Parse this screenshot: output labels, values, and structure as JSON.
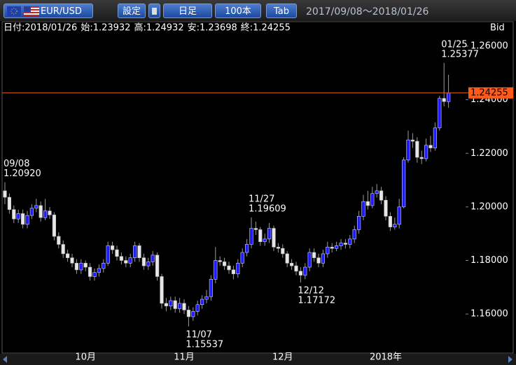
{
  "toolbar": {
    "pair": "EUR/USD",
    "settings": "設定",
    "period": "日足",
    "count": "100本",
    "tab": "Tab",
    "range": "2017/09/08～2018/01/26"
  },
  "info": [
    "日付:2018/01/26",
    "始:1.23932",
    "高:1.24932",
    "安:1.23698",
    "終:1.24255"
  ],
  "price_type": "Bid",
  "chart_data": {
    "type": "candlestick",
    "categories": [
      null,
      null,
      null,
      null,
      null,
      null,
      null,
      null,
      null,
      null,
      null,
      null,
      null,
      null,
      null,
      null,
      null,
      null,
      "10月",
      null,
      null,
      null,
      null,
      null,
      null,
      null,
      null,
      null,
      null,
      null,
      null,
      null,
      null,
      null,
      null,
      null,
      null,
      null,
      null,
      null,
      "11月",
      null,
      null,
      null,
      null,
      null,
      null,
      null,
      null,
      null,
      null,
      null,
      null,
      null,
      null,
      null,
      null,
      null,
      null,
      null,
      null,
      null,
      "12月",
      null,
      null,
      null,
      null,
      null,
      null,
      null,
      null,
      null,
      null,
      null,
      null,
      null,
      null,
      null,
      null,
      null,
      null,
      null,
      null,
      null,
      null,
      "2018年",
      null,
      null,
      null,
      null,
      null,
      null,
      null,
      null,
      null,
      null,
      null,
      null,
      null,
      null
    ],
    "open": [
      1.206,
      1.2036,
      1.199,
      1.1955,
      1.1975,
      1.1935,
      1.1968,
      1.1995,
      1.2005,
      1.196,
      1.1985,
      1.197,
      1.189,
      1.186,
      1.1825,
      1.181,
      1.179,
      1.1765,
      1.179,
      1.1775,
      1.174,
      1.1755,
      1.177,
      1.179,
      1.1855,
      1.184,
      1.1815,
      1.18,
      1.179,
      1.181,
      1.1855,
      1.181,
      1.178,
      1.1795,
      1.182,
      1.174,
      1.164,
      1.163,
      1.165,
      1.162,
      1.164,
      1.1615,
      1.159,
      1.161,
      1.1635,
      1.1655,
      1.1665,
      1.173,
      1.18,
      1.1795,
      1.178,
      1.1765,
      1.175,
      1.179,
      1.183,
      1.186,
      1.192,
      1.1915,
      1.187,
      1.188,
      1.192,
      1.185,
      1.1845,
      1.1825,
      1.179,
      1.178,
      1.176,
      1.1745,
      1.1775,
      1.183,
      1.181,
      1.179,
      1.1825,
      1.185,
      1.1845,
      1.1855,
      1.1865,
      1.186,
      1.188,
      1.1915,
      1.1965,
      1.202,
      1.2005,
      1.205,
      1.206,
      1.2025,
      1.1965,
      1.1925,
      1.1935,
      1.2,
      1.2175,
      1.225,
      1.2245,
      1.2185,
      1.218,
      1.223,
      1.222,
      1.2295,
      1.2405,
      1.23932
    ],
    "high": [
      1.2092,
      1.205,
      1.2005,
      1.199,
      1.199,
      1.1985,
      1.201,
      1.203,
      1.202,
      1.203,
      1.2,
      1.198,
      1.1905,
      1.1875,
      1.184,
      1.1825,
      1.1805,
      1.1805,
      1.18,
      1.179,
      1.177,
      1.1785,
      1.1805,
      1.187,
      1.187,
      1.1855,
      1.183,
      1.1815,
      1.1825,
      1.187,
      1.1865,
      1.1825,
      1.181,
      1.1835,
      1.183,
      1.175,
      1.166,
      1.1665,
      1.1665,
      1.166,
      1.1655,
      1.163,
      1.1625,
      1.165,
      1.167,
      1.169,
      1.1745,
      1.185,
      1.1815,
      1.181,
      1.1795,
      1.178,
      1.1805,
      1.1845,
      1.188,
      1.19609,
      1.1945,
      1.1925,
      1.19,
      1.194,
      1.193,
      1.1865,
      1.186,
      1.1835,
      1.1805,
      1.1795,
      1.1775,
      1.179,
      1.1845,
      1.1845,
      1.1825,
      1.184,
      1.187,
      1.1865,
      1.187,
      1.188,
      1.188,
      1.1895,
      1.193,
      1.1985,
      1.2045,
      1.206,
      1.2075,
      1.2085,
      1.2075,
      1.204,
      1.198,
      1.196,
      1.203,
      1.2185,
      1.2285,
      1.2275,
      1.226,
      1.221,
      1.2255,
      1.2265,
      1.2315,
      1.2415,
      1.25377,
      1.24932
    ],
    "low": [
      1.201,
      1.1975,
      1.194,
      1.194,
      1.192,
      1.192,
      1.1955,
      1.198,
      1.1945,
      1.195,
      1.1955,
      1.1875,
      1.1845,
      1.181,
      1.1795,
      1.1775,
      1.175,
      1.175,
      1.176,
      1.1725,
      1.1725,
      1.174,
      1.1755,
      1.178,
      1.1825,
      1.18,
      1.1785,
      1.1775,
      1.1775,
      1.1795,
      1.1795,
      1.1765,
      1.1765,
      1.178,
      1.1725,
      1.162,
      1.161,
      1.1615,
      1.1605,
      1.1605,
      1.16,
      1.15537,
      1.1575,
      1.1595,
      1.162,
      1.164,
      1.165,
      1.1715,
      1.178,
      1.1765,
      1.175,
      1.173,
      1.1735,
      1.1775,
      1.1815,
      1.1845,
      1.1895,
      1.1855,
      1.1855,
      1.1865,
      1.1835,
      1.183,
      1.181,
      1.1775,
      1.1765,
      1.1745,
      1.17172,
      1.173,
      1.176,
      1.1795,
      1.1775,
      1.1775,
      1.181,
      1.183,
      1.1835,
      1.184,
      1.1845,
      1.1845,
      1.1865,
      1.19,
      1.195,
      1.199,
      1.1995,
      1.2035,
      1.201,
      1.195,
      1.191,
      1.1915,
      1.192,
      1.1995,
      1.2165,
      1.222,
      1.2165,
      1.216,
      1.217,
      1.2205,
      1.221,
      1.2285,
      1.2375,
      1.23698
    ],
    "close": [
      1.2036,
      1.199,
      1.1955,
      1.1975,
      1.1935,
      1.1968,
      1.1995,
      1.2005,
      1.196,
      1.1985,
      1.197,
      1.189,
      1.186,
      1.1825,
      1.181,
      1.179,
      1.1765,
      1.179,
      1.1775,
      1.174,
      1.1755,
      1.177,
      1.179,
      1.1855,
      1.184,
      1.1815,
      1.18,
      1.179,
      1.181,
      1.1855,
      1.181,
      1.178,
      1.1795,
      1.182,
      1.174,
      1.164,
      1.163,
      1.165,
      1.162,
      1.164,
      1.1615,
      1.159,
      1.161,
      1.1635,
      1.1655,
      1.1665,
      1.173,
      1.18,
      1.1795,
      1.178,
      1.1765,
      1.175,
      1.179,
      1.183,
      1.186,
      1.192,
      1.1915,
      1.187,
      1.188,
      1.192,
      1.185,
      1.1845,
      1.1825,
      1.179,
      1.178,
      1.176,
      1.1745,
      1.1775,
      1.183,
      1.181,
      1.179,
      1.1825,
      1.185,
      1.1845,
      1.1855,
      1.1865,
      1.186,
      1.188,
      1.1915,
      1.1965,
      1.202,
      1.2005,
      1.205,
      1.206,
      1.2025,
      1.1965,
      1.1925,
      1.1935,
      1.2,
      1.2175,
      1.225,
      1.2245,
      1.2185,
      1.218,
      1.223,
      1.222,
      1.2295,
      1.2405,
      1.23932,
      1.24255
    ],
    "up_color": "#1c1cff",
    "down_color": "#e6e6e6",
    "wick_color": "#9a9a9a",
    "ylim": [
      1.1462,
      1.2647
    ],
    "yticks": [
      {
        "value": 1.26,
        "label": "1.26000"
      },
      {
        "value": 1.24,
        "label": "1.24000"
      },
      {
        "value": 1.22,
        "label": "1.22000"
      },
      {
        "value": 1.2,
        "label": "1.20000"
      },
      {
        "value": 1.18,
        "label": "1.18000"
      },
      {
        "value": 1.16,
        "label": "1.16000"
      }
    ],
    "current_price": {
      "value": 1.24255,
      "label": "1.24255",
      "color": "#ff5a1a"
    },
    "annotations": [
      {
        "date": "09/08",
        "value": 1.2092,
        "label": "1.20920"
      },
      {
        "date": "11/07",
        "value": 1.15537,
        "label": "1.15537"
      },
      {
        "date": "11/27",
        "value": 1.19609,
        "label": "1.19609"
      },
      {
        "date": "12/12",
        "value": 1.17172,
        "label": "1.17172"
      },
      {
        "date": "01/25",
        "value": 1.25377,
        "label": "1.25377"
      }
    ]
  }
}
